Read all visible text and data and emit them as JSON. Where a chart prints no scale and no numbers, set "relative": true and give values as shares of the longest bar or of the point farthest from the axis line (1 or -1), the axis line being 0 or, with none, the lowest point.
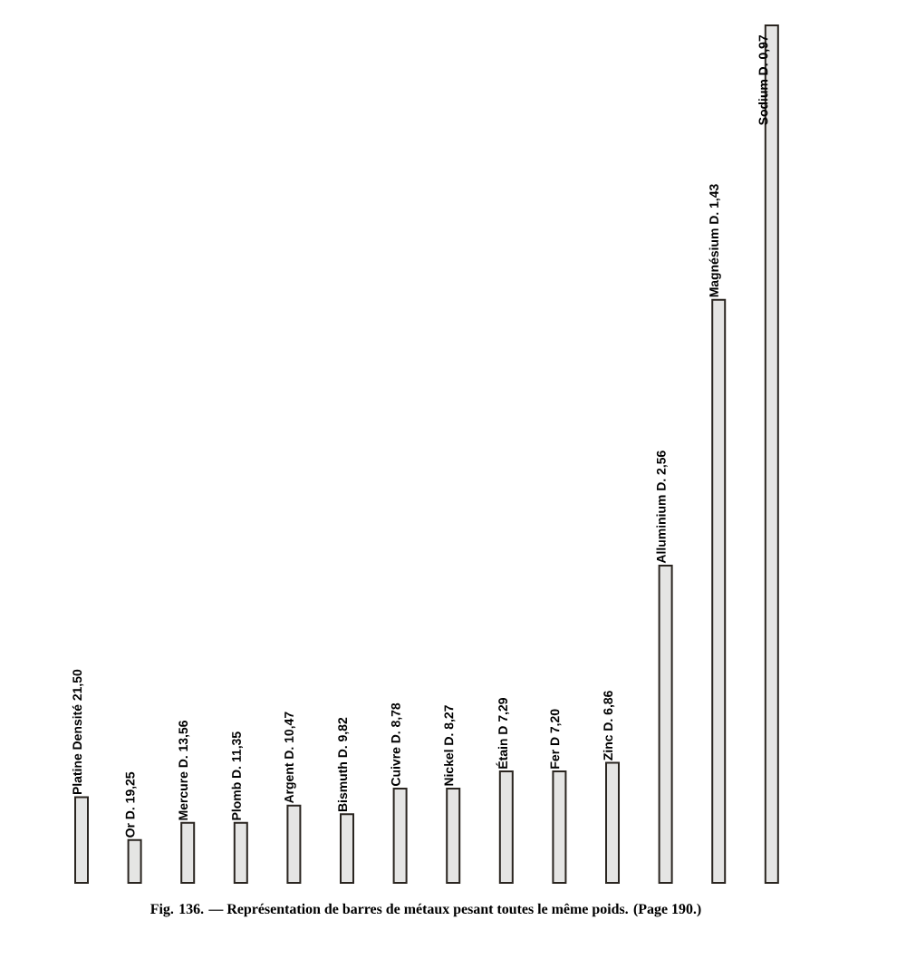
{
  "chart_data": {
    "type": "bar",
    "relative": true,
    "color": "#2a2520",
    "categories": [
      "Platine Densité 21,50",
      "Or D. 19,25",
      "Mercure D. 13,56",
      "Plomb D. 11,35",
      "Argent D. 10,47",
      "Bismuth D. 9,82",
      "Cuivre D. 8,78",
      "Nickel D. 8,27",
      "Étain D 7,29",
      "Fer D 7,20",
      "Zinc D. 6,86",
      "Alluminium D. 2,56",
      "Magnésium D. 1,43",
      "Sodium D. 0,97"
    ],
    "values": [
      0.1,
      0.05,
      0.07,
      0.07,
      0.09,
      0.08,
      0.11,
      0.11,
      0.13,
      0.13,
      0.14,
      0.37,
      0.68,
      1
    ],
    "annotations": [
      "Fig. 136. — Représentation de barres de métaux pesant toutes le même poids. (Page 190.)"
    ]
  }
}
